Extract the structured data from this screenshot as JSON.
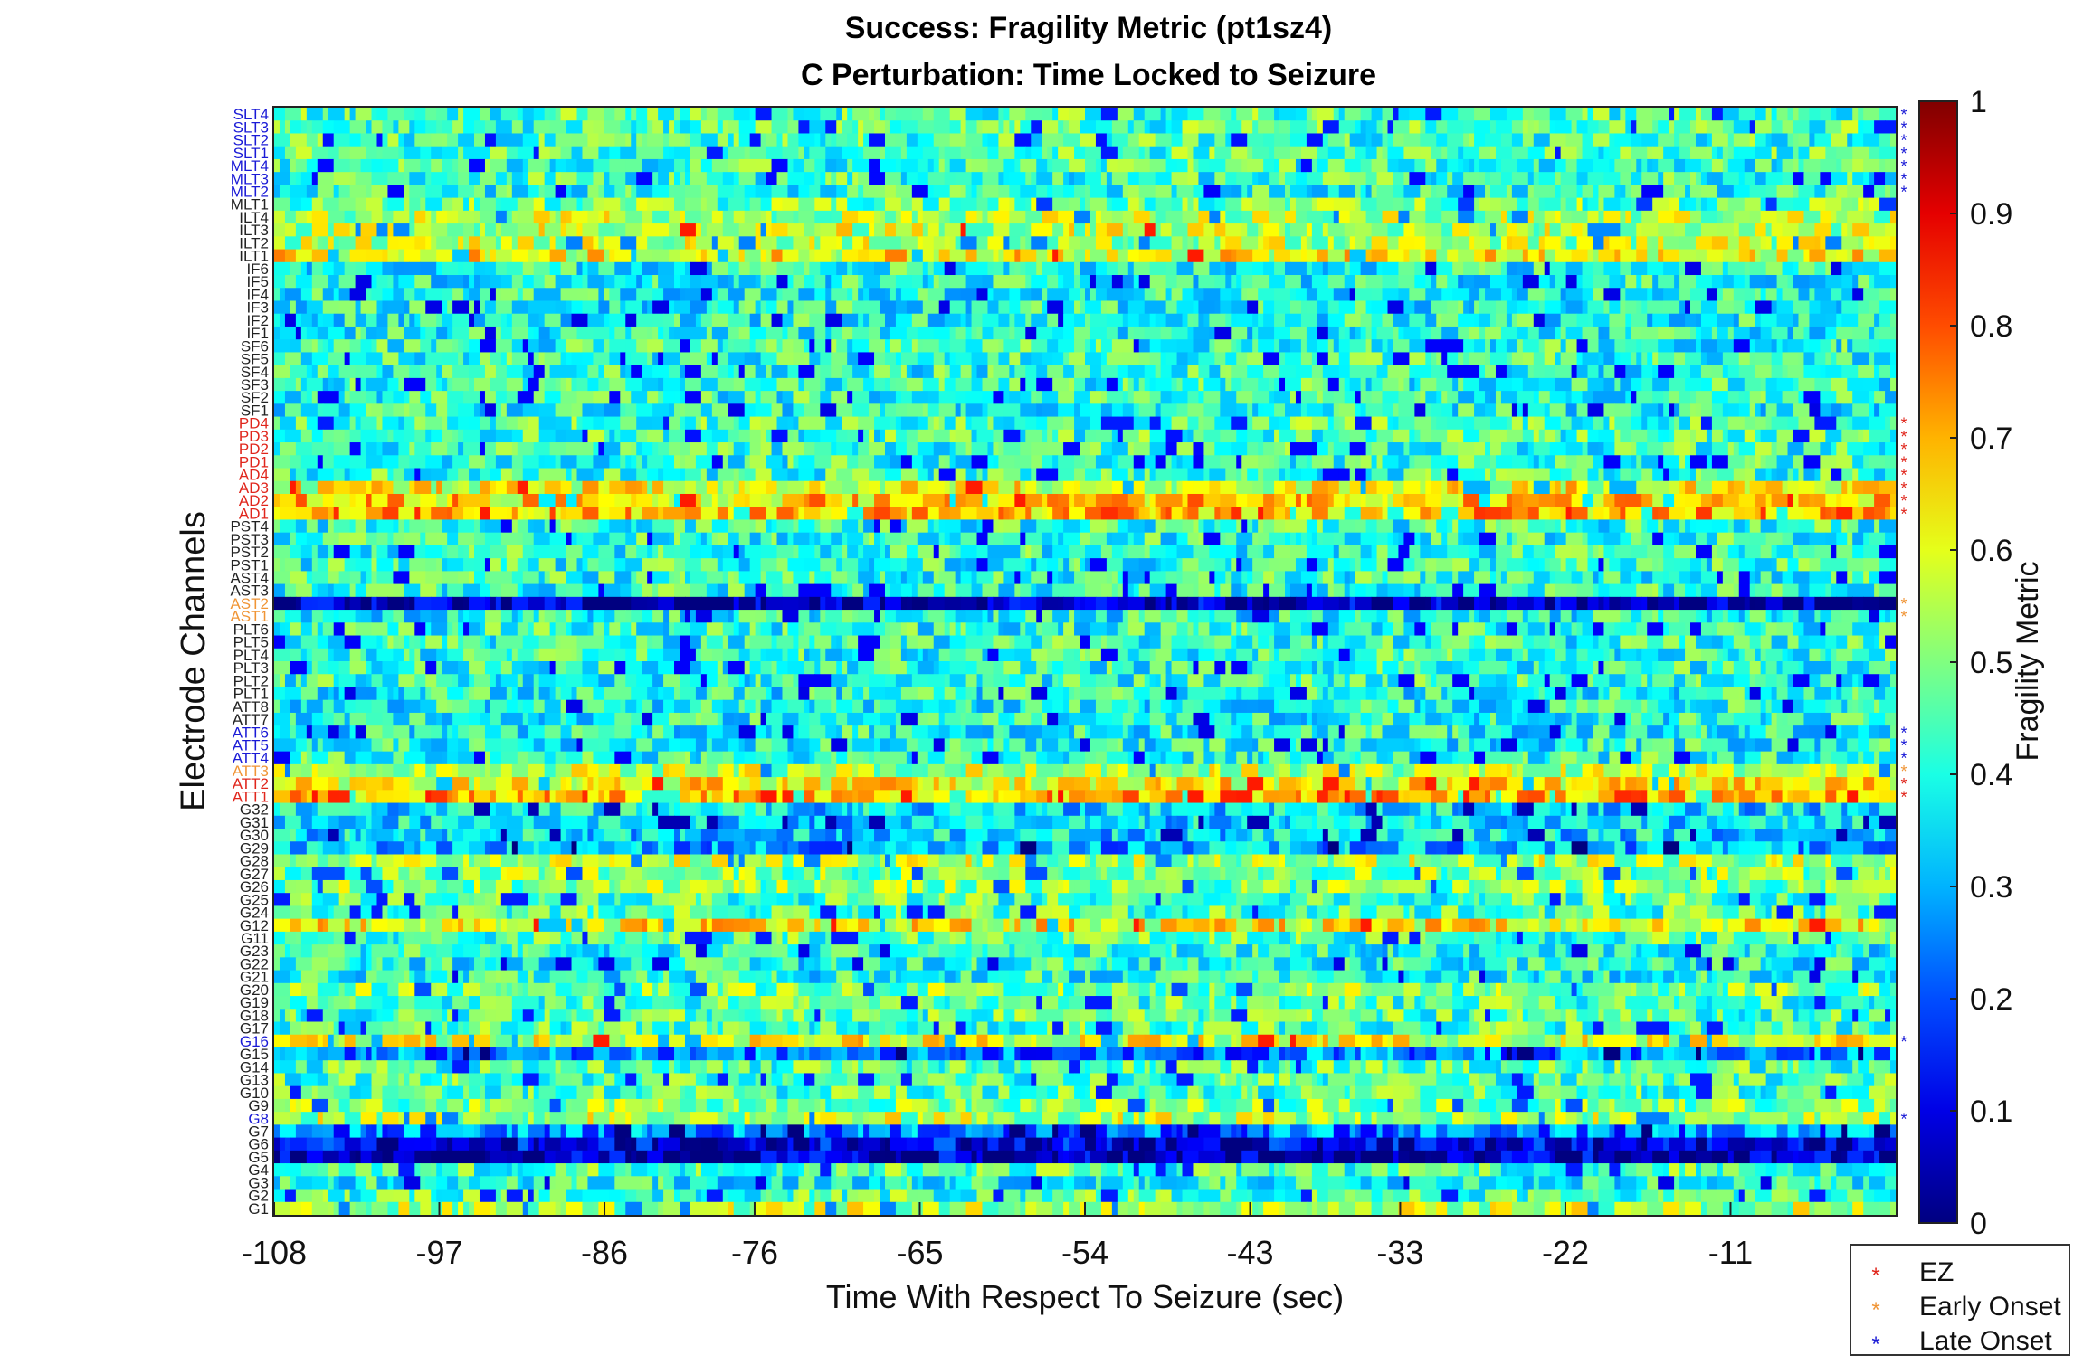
{
  "chart_data": {
    "type": "heatmap",
    "title": "Success: Fragility Metric (pt1sz4)",
    "subtitle": "C Perturbation:  Time Locked to Seizure",
    "xlabel": "Time With Respect To Seizure (sec)",
    "ylabel": "Electrode Channels",
    "x_ticks": [
      "-108",
      "-97",
      "-86",
      "-76",
      "-65",
      "-54",
      "-43",
      "-33",
      "-22",
      "-11"
    ],
    "xlim": [
      -108,
      0
    ],
    "colorbar": {
      "label": "Fragility Metric",
      "range": [
        0,
        1
      ],
      "colormap": "jet",
      "ticks": [
        "0",
        "0.1",
        "0.2",
        "0.3",
        "0.4",
        "0.5",
        "0.6",
        "0.7",
        "0.8",
        "0.9",
        "1"
      ]
    },
    "channels": [
      {
        "name": "SLT4",
        "mark": "late"
      },
      {
        "name": "SLT3",
        "mark": "late"
      },
      {
        "name": "SLT2",
        "mark": "late"
      },
      {
        "name": "SLT1",
        "mark": "late"
      },
      {
        "name": "MLT4",
        "mark": "late"
      },
      {
        "name": "MLT3",
        "mark": "late"
      },
      {
        "name": "MLT2",
        "mark": "late"
      },
      {
        "name": "MLT1",
        "mark": ""
      },
      {
        "name": "ILT4",
        "mark": ""
      },
      {
        "name": "ILT3",
        "mark": ""
      },
      {
        "name": "ILT2",
        "mark": ""
      },
      {
        "name": "ILT1",
        "mark": ""
      },
      {
        "name": "IF6",
        "mark": ""
      },
      {
        "name": "IF5",
        "mark": ""
      },
      {
        "name": "IF4",
        "mark": ""
      },
      {
        "name": "IF3",
        "mark": ""
      },
      {
        "name": "IF2",
        "mark": ""
      },
      {
        "name": "IF1",
        "mark": ""
      },
      {
        "name": "SF6",
        "mark": ""
      },
      {
        "name": "SF5",
        "mark": ""
      },
      {
        "name": "SF4",
        "mark": ""
      },
      {
        "name": "SF3",
        "mark": ""
      },
      {
        "name": "SF2",
        "mark": ""
      },
      {
        "name": "SF1",
        "mark": ""
      },
      {
        "name": "PD4",
        "mark": "ez"
      },
      {
        "name": "PD3",
        "mark": "ez"
      },
      {
        "name": "PD2",
        "mark": "ez"
      },
      {
        "name": "PD1",
        "mark": "ez"
      },
      {
        "name": "AD4",
        "mark": "ez"
      },
      {
        "name": "AD3",
        "mark": "ez"
      },
      {
        "name": "AD2",
        "mark": "ez"
      },
      {
        "name": "AD1",
        "mark": "ez"
      },
      {
        "name": "PST4",
        "mark": ""
      },
      {
        "name": "PST3",
        "mark": ""
      },
      {
        "name": "PST2",
        "mark": ""
      },
      {
        "name": "PST1",
        "mark": ""
      },
      {
        "name": "AST4",
        "mark": ""
      },
      {
        "name": "AST3",
        "mark": ""
      },
      {
        "name": "AST2",
        "mark": "early"
      },
      {
        "name": "AST1",
        "mark": "early"
      },
      {
        "name": "PLT6",
        "mark": ""
      },
      {
        "name": "PLT5",
        "mark": ""
      },
      {
        "name": "PLT4",
        "mark": ""
      },
      {
        "name": "PLT3",
        "mark": ""
      },
      {
        "name": "PLT2",
        "mark": ""
      },
      {
        "name": "PLT1",
        "mark": ""
      },
      {
        "name": "ATT8",
        "mark": ""
      },
      {
        "name": "ATT7",
        "mark": ""
      },
      {
        "name": "ATT6",
        "mark": "late"
      },
      {
        "name": "ATT5",
        "mark": "late"
      },
      {
        "name": "ATT4",
        "mark": "late"
      },
      {
        "name": "ATT3",
        "mark": "early"
      },
      {
        "name": "ATT2",
        "mark": "ez"
      },
      {
        "name": "ATT1",
        "mark": "ez"
      },
      {
        "name": "G32",
        "mark": ""
      },
      {
        "name": "G31",
        "mark": ""
      },
      {
        "name": "G30",
        "mark": ""
      },
      {
        "name": "G29",
        "mark": ""
      },
      {
        "name": "G28",
        "mark": ""
      },
      {
        "name": "G27",
        "mark": ""
      },
      {
        "name": "G26",
        "mark": ""
      },
      {
        "name": "G25",
        "mark": ""
      },
      {
        "name": "G24",
        "mark": ""
      },
      {
        "name": "G12",
        "mark": ""
      },
      {
        "name": "G11",
        "mark": ""
      },
      {
        "name": "G23",
        "mark": ""
      },
      {
        "name": "G22",
        "mark": ""
      },
      {
        "name": "G21",
        "mark": ""
      },
      {
        "name": "G20",
        "mark": ""
      },
      {
        "name": "G19",
        "mark": ""
      },
      {
        "name": "G18",
        "mark": ""
      },
      {
        "name": "G17",
        "mark": ""
      },
      {
        "name": "G16",
        "mark": "late"
      },
      {
        "name": "G15",
        "mark": ""
      },
      {
        "name": "G14",
        "mark": ""
      },
      {
        "name": "G13",
        "mark": ""
      },
      {
        "name": "G10",
        "mark": ""
      },
      {
        "name": "G9",
        "mark": ""
      },
      {
        "name": "G8",
        "mark": "late"
      },
      {
        "name": "G7",
        "mark": ""
      },
      {
        "name": "G6",
        "mark": ""
      },
      {
        "name": "G5",
        "mark": ""
      },
      {
        "name": "G4",
        "mark": ""
      },
      {
        "name": "G3",
        "mark": ""
      },
      {
        "name": "G2",
        "mark": ""
      },
      {
        "name": "G1",
        "mark": ""
      }
    ],
    "row_levels": [
      0.45,
      0.45,
      0.44,
      0.45,
      0.43,
      0.43,
      0.42,
      0.48,
      0.55,
      0.56,
      0.55,
      0.62,
      0.4,
      0.4,
      0.4,
      0.4,
      0.4,
      0.4,
      0.42,
      0.42,
      0.42,
      0.42,
      0.42,
      0.4,
      0.45,
      0.44,
      0.43,
      0.42,
      0.43,
      0.6,
      0.66,
      0.7,
      0.42,
      0.42,
      0.42,
      0.42,
      0.42,
      0.42,
      0.05,
      0.4,
      0.42,
      0.42,
      0.42,
      0.42,
      0.42,
      0.4,
      0.4,
      0.4,
      0.4,
      0.4,
      0.42,
      0.55,
      0.62,
      0.72,
      0.35,
      0.35,
      0.35,
      0.3,
      0.55,
      0.5,
      0.5,
      0.45,
      0.45,
      0.62,
      0.45,
      0.4,
      0.4,
      0.4,
      0.5,
      0.45,
      0.45,
      0.45,
      0.6,
      0.25,
      0.45,
      0.45,
      0.45,
      0.5,
      0.55,
      0.25,
      0.1,
      0.05,
      0.45,
      0.4,
      0.45,
      0.55
    ],
    "legend": {
      "placement": "bottom-right",
      "entries": [
        {
          "label": "EZ",
          "color": "#e0261c"
        },
        {
          "label": "Early Onset",
          "color": "#f09536"
        },
        {
          "label": "Late Onset",
          "color": "#1a1ad6"
        }
      ]
    }
  }
}
